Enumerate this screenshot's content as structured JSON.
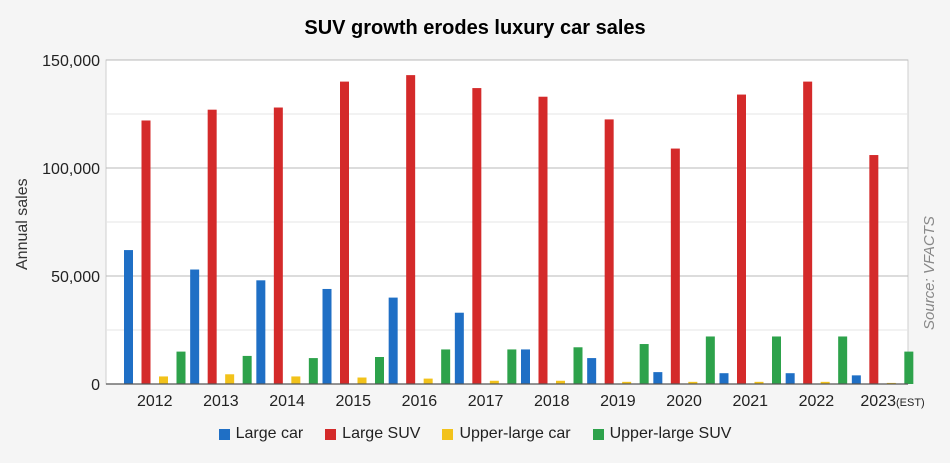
{
  "chart_data": {
    "type": "bar",
    "title": "SUV growth erodes luxury car sales",
    "ylabel": "Annual sales",
    "xlabel": "",
    "ylim": [
      0,
      150000
    ],
    "yticks": [
      0,
      50000,
      100000,
      150000
    ],
    "ytick_labels": [
      "0",
      "50,000",
      "100,000",
      "150,000"
    ],
    "grid": true,
    "legend_position": "bottom",
    "source": "Source: VFACTS",
    "categories": [
      "2012",
      "2013",
      "2014",
      "2015",
      "2016",
      "2017",
      "2018",
      "2019",
      "2020",
      "2021",
      "2022",
      "2023"
    ],
    "category_suffixes": [
      "",
      "",
      "",
      "",
      "",
      "",
      "",
      "",
      "",
      "",
      "",
      "(EST)"
    ],
    "series": [
      {
        "name": "Large car",
        "color": "#1f6fc5",
        "values": [
          62000,
          53000,
          48000,
          44000,
          40000,
          33000,
          16000,
          12000,
          5500,
          5000,
          5000,
          4000
        ]
      },
      {
        "name": "Large SUV",
        "color": "#d42a2a",
        "values": [
          122000,
          127000,
          128000,
          140000,
          143000,
          137000,
          133000,
          122500,
          109000,
          134000,
          140000,
          106000
        ]
      },
      {
        "name": "Upper-large car",
        "color": "#f2c21a",
        "values": [
          3500,
          4500,
          3500,
          3000,
          2500,
          1500,
          1500,
          1000,
          1000,
          1000,
          1000,
          500
        ]
      },
      {
        "name": "Upper-large SUV",
        "color": "#2da24b",
        "values": [
          15000,
          13000,
          12000,
          12500,
          16000,
          16000,
          17000,
          18500,
          22000,
          22000,
          22000,
          15000
        ]
      }
    ]
  }
}
